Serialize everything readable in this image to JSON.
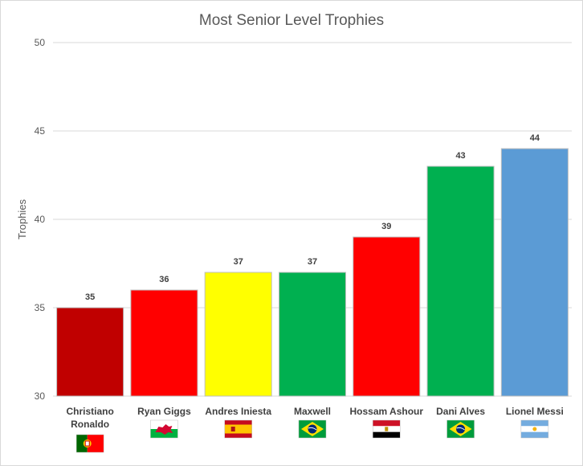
{
  "chart_data": {
    "type": "bar",
    "title": "Most Senior Level Trophies",
    "xlabel": "",
    "ylabel": "Trophies",
    "ylim": [
      30,
      50
    ],
    "yticks": [
      30,
      35,
      40,
      45,
      50
    ],
    "grid": true,
    "legend": "none",
    "categories": [
      "Christiano Ronaldo",
      "Ryan Giggs",
      "Andres Iniesta",
      "Maxwell",
      "Hossam Ashour",
      "Dani Alves",
      "Lionel Messi"
    ],
    "category_lines": [
      [
        "Christiano",
        "Ronaldo"
      ],
      [
        "Ryan Giggs"
      ],
      [
        "Andres Iniesta"
      ],
      [
        "Maxwell"
      ],
      [
        "Hossam Ashour"
      ],
      [
        "Dani Alves"
      ],
      [
        "Lionel Messi"
      ]
    ],
    "values": [
      35,
      36,
      37,
      37,
      39,
      43,
      44
    ],
    "bar_colors": [
      "#c00000",
      "#ff0000",
      "#ffff00",
      "#00b050",
      "#ff0000",
      "#00b050",
      "#5b9bd5"
    ],
    "flags": [
      "portugal-flag-icon",
      "wales-flag-icon",
      "spain-flag-icon",
      "brazil-flag-icon",
      "egypt-flag-icon",
      "brazil-flag-icon",
      "argentina-flag-icon"
    ]
  }
}
